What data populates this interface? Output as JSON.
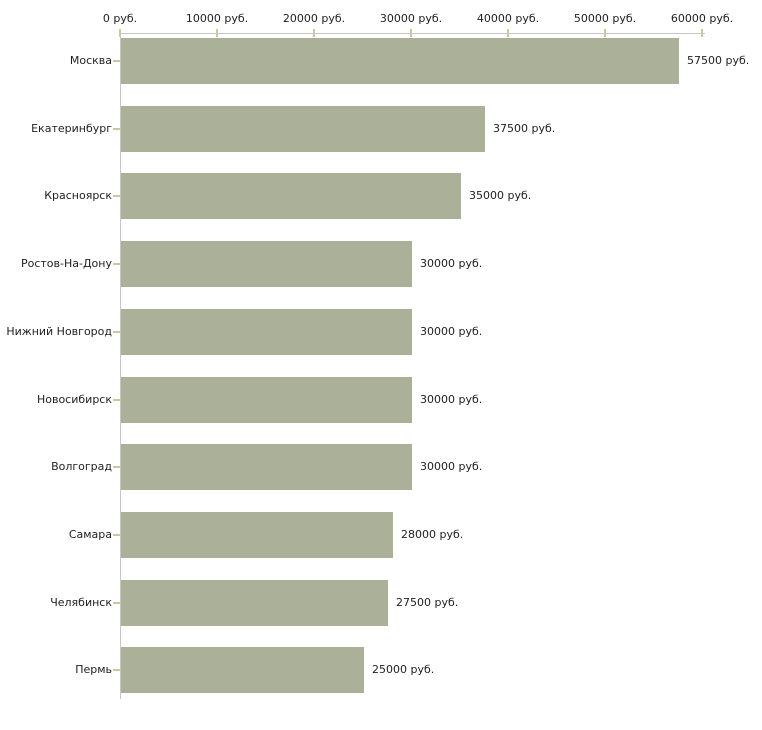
{
  "chart_data": {
    "type": "bar",
    "orientation": "horizontal",
    "title": "",
    "xlabel": "",
    "ylabel": "",
    "unit": "руб.",
    "categories": [
      "Москва",
      "Екатеринбург",
      "Красноярск",
      "Ростов-На-Дону",
      "Нижний Новгород",
      "Новосибирск",
      "Волгоград",
      "Самара",
      "Челябинск",
      "Пермь"
    ],
    "values": [
      57500,
      37500,
      35000,
      30000,
      30000,
      30000,
      30000,
      28000,
      27500,
      25000
    ],
    "value_labels": [
      "57500 руб.",
      "37500 руб.",
      "35000 руб.",
      "30000 руб.",
      "30000 руб.",
      "30000 руб.",
      "30000 руб.",
      "28000 руб.",
      "27500 руб.",
      "25000 руб."
    ],
    "x_ticks": [
      0,
      10000,
      20000,
      30000,
      40000,
      50000,
      60000
    ],
    "x_tick_labels": [
      "0 руб.",
      "10000 руб.",
      "20000 руб.",
      "30000 руб.",
      "40000 руб.",
      "50000 руб.",
      "60000 руб."
    ],
    "xlim": [
      0,
      60000
    ],
    "grid": false,
    "legend": false,
    "colors": {
      "bar": "#abb098",
      "axis_line": "#c6c6c6",
      "tick_mark": "#c9c9a0",
      "text": "#1f1f1f",
      "background": "#ffffff"
    }
  }
}
